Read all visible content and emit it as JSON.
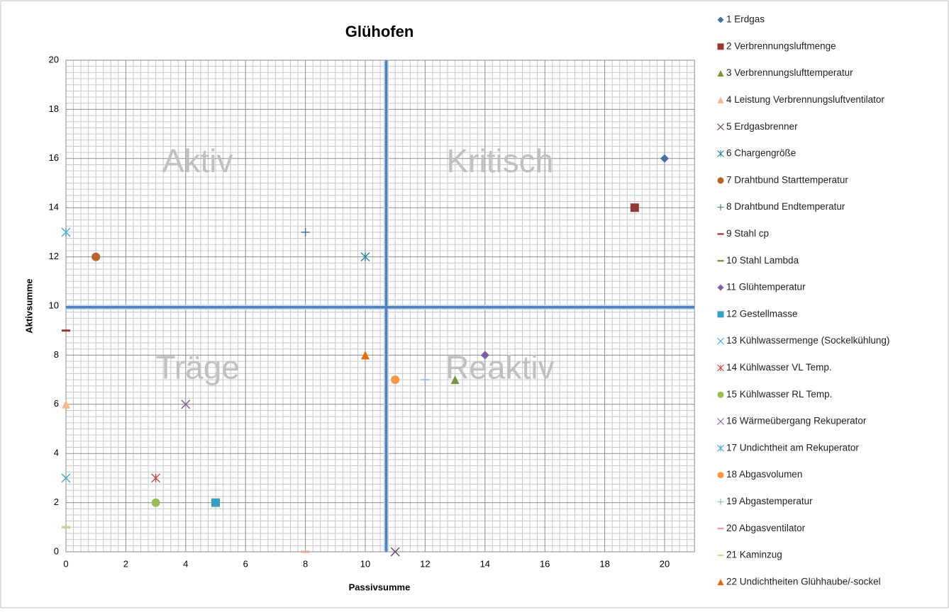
{
  "chart_data": {
    "type": "scatter",
    "title": "Glühofen",
    "x_label": "Passivsumme",
    "y_label": "Aktivsumme",
    "xlim": [
      0,
      21
    ],
    "ylim": [
      0,
      20
    ],
    "xticks": [
      0,
      2,
      4,
      6,
      8,
      10,
      12,
      14,
      16,
      18,
      20
    ],
    "yticks": [
      0,
      2,
      4,
      6,
      8,
      10,
      12,
      14,
      16,
      18,
      20
    ],
    "grid": true,
    "minor_grid": true,
    "legend": "right",
    "quadrant_lines": {
      "x": 10.7,
      "y": 9.95,
      "color": "#4f81bd"
    },
    "annotations": [
      {
        "text": "Aktiv",
        "x": 4.4,
        "y": 15.8
      },
      {
        "text": "Kritisch",
        "x": 14.5,
        "y": 15.8
      },
      {
        "text": "Träge",
        "x": 4.4,
        "y": 7.4
      },
      {
        "text": "Reaktiv",
        "x": 14.5,
        "y": 7.4
      }
    ],
    "series": [
      {
        "name": "1 Erdgas",
        "color": "#4a6fa5",
        "marker": "diamond",
        "x": [
          20
        ],
        "values": [
          16
        ]
      },
      {
        "name": "2 Verbrennungsluftmenge",
        "color": "#953735",
        "marker": "square",
        "x": [
          19
        ],
        "values": [
          14
        ]
      },
      {
        "name": "3 Verbrennungslufttemperatur",
        "color": "#76923c",
        "marker": "triangle",
        "x": [
          13
        ],
        "values": [
          7
        ]
      },
      {
        "name": "4 Leistung Verbrennungsluftventilator",
        "color": "#f9b891",
        "marker": "triangle",
        "x": [
          0
        ],
        "values": [
          6
        ]
      },
      {
        "name": "5 Erdgasbrenner",
        "color": "#604a7b",
        "marker": "x",
        "x": [
          11
        ],
        "values": [
          0
        ]
      },
      {
        "name": "6 Chargengröße",
        "color": "#31859c",
        "marker": "star",
        "x": [
          10
        ],
        "values": [
          12
        ]
      },
      {
        "name": "7 Drahtbund Starttemperatur",
        "color": "#b7652a",
        "marker": "circle",
        "x": [
          1
        ],
        "values": [
          12
        ]
      },
      {
        "name": "8 Drahtbund Endtemperatur",
        "color": "#4a6fa5",
        "marker": "plus",
        "x": [
          8
        ],
        "values": [
          13
        ]
      },
      {
        "name": "9 Stahl cp",
        "color": "#953735",
        "marker": "dash",
        "x": [
          0
        ],
        "values": [
          9
        ]
      },
      {
        "name": "10 Stahl Lambda",
        "color": "#76923c",
        "marker": "dash",
        "x": [
          0
        ],
        "values": [
          1
        ]
      },
      {
        "name": "11 Glühtemperatur",
        "color": "#7f5fa0",
        "marker": "diamond",
        "x": [
          14
        ],
        "values": [
          8
        ]
      },
      {
        "name": "12 Gestellmasse",
        "color": "#3a9fc0",
        "marker": "square",
        "x": [
          5
        ],
        "values": [
          2
        ]
      },
      {
        "name": "13 Kühlwassermenge (Sockelkühlung)",
        "color": "#4bacc6",
        "marker": "x",
        "x": [
          0
        ],
        "values": [
          3
        ]
      },
      {
        "name": "14 Kühlwasser VL Temp.",
        "color": "#c0504d",
        "marker": "star",
        "x": [
          3
        ],
        "values": [
          3
        ]
      },
      {
        "name": "15 Kühlwasser RL Temp.",
        "color": "#9bbb59",
        "marker": "circle",
        "x": [
          3
        ],
        "values": [
          2
        ]
      },
      {
        "name": "16 Wärmeübergang Rekuperator",
        "color": "#8064a2",
        "marker": "x",
        "x": [
          4
        ],
        "values": [
          6
        ]
      },
      {
        "name": "17 Undichtheit am Rekuperator",
        "color": "#4bacc6",
        "marker": "star",
        "x": [
          0
        ],
        "values": [
          13
        ]
      },
      {
        "name": "18 Abgasvolumen",
        "color": "#f79646",
        "marker": "circle",
        "x": [
          11
        ],
        "values": [
          7
        ]
      },
      {
        "name": "19 Abgastemperatur",
        "color": "#95b3d7",
        "marker": "plus",
        "x": [
          12
        ],
        "values": [
          7
        ]
      },
      {
        "name": "20 Abgasventilator",
        "color": "#e6a0a0",
        "marker": "dash",
        "x": [
          8
        ],
        "values": [
          0
        ]
      },
      {
        "name": "21 Kaminzug",
        "color": "#c3d69b",
        "marker": "dash",
        "x": [
          0
        ],
        "values": [
          1
        ]
      },
      {
        "name": "22 Undichtheiten Glühhaube/-sockel",
        "color": "#e36c09",
        "marker": "triangle",
        "x": [
          10
        ],
        "values": [
          8
        ]
      }
    ]
  }
}
